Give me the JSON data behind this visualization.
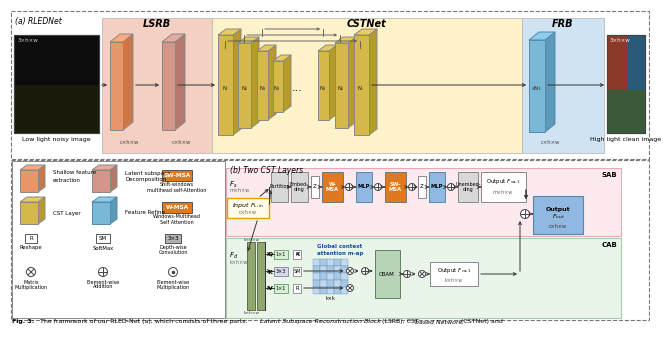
{
  "fig_label_a": "(a) RLEDNet",
  "fig_label_b": "(b) Two CST Layers",
  "lsrb_label": "LSRB",
  "cstnet_label": "CSTNet",
  "frb_label": "FRB",
  "sab_label": "SAB",
  "cab_label": "CAB",
  "lsrb_bg": "#f2c8b8",
  "cstnet_bg": "#fdf0c0",
  "frb_bg": "#c8dff0",
  "sab_bg": "#fde8ec",
  "cab_bg": "#e8f4e8",
  "orange_block": "#e8956a",
  "pink_block": "#d4968a",
  "yellow_block": "#d4b84a",
  "blue_block": "#7ab8d8",
  "sw_msa_color": "#e07820",
  "w_msa_color": "#e07820",
  "mlp_color": "#90b8e0",
  "gray_block": "#c8c8c8",
  "green_block": "#90c890",
  "caption_text": "Fig. 3: The framework of our RLED-Net (a), which consists of three parts: ",
  "caption_italic": "Latent Subspace Reconstruction Block",
  "caption_mid": " (LSRB), CST ",
  "caption_italic2": "based Network",
  "caption_end": " (CSTNet) and"
}
